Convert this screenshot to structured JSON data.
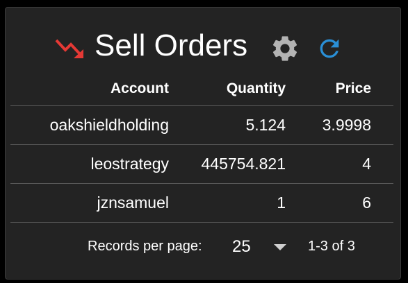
{
  "header": {
    "title": "Sell Orders",
    "trend_icon": "trending-down-icon",
    "settings_icon": "gear-icon",
    "refresh_icon": "refresh-icon"
  },
  "colors": {
    "background": "#232323",
    "trend_icon": "#e53935",
    "gear_icon": "#b3b3b3",
    "refresh_icon": "#2a8fd6",
    "text": "#ffffff",
    "divider": "#5a5a5a"
  },
  "table": {
    "columns": [
      "Account",
      "Quantity",
      "Price"
    ],
    "rows": [
      {
        "account": "oakshieldholding",
        "quantity": "5.124",
        "price": "3.9998"
      },
      {
        "account": "leostrategy",
        "quantity": "445754.821",
        "price": "4"
      },
      {
        "account": "jznsamuel",
        "quantity": "1",
        "price": "6"
      }
    ]
  },
  "pagination": {
    "records_label": "Records per page:",
    "records_per_page": "25",
    "range": "1-3 of 3"
  }
}
